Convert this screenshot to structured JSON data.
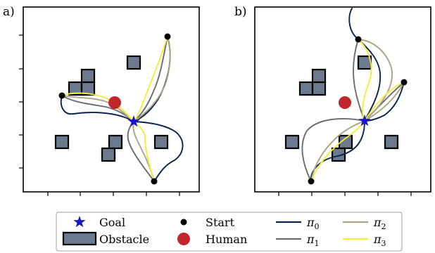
{
  "panels": [
    {
      "label": "a)"
    },
    {
      "label": "b)"
    }
  ],
  "legend": {
    "goal": "Goal",
    "obstacle": "Obstacle",
    "start": "Start",
    "human": "Human",
    "policies": [
      {
        "base": "π",
        "sub": "0",
        "color": "#0b2250"
      },
      {
        "base": "π",
        "sub": "1",
        "color": "#686c72"
      },
      {
        "base": "π",
        "sub": "2",
        "color": "#aaa385"
      },
      {
        "base": "π",
        "sub": "3",
        "color": "#f2ec3a"
      }
    ]
  },
  "colors": {
    "goal": "#1515c8",
    "human": "#c0272a",
    "obstacle_fill": "#6b7a8f",
    "start": "#000000"
  }
}
